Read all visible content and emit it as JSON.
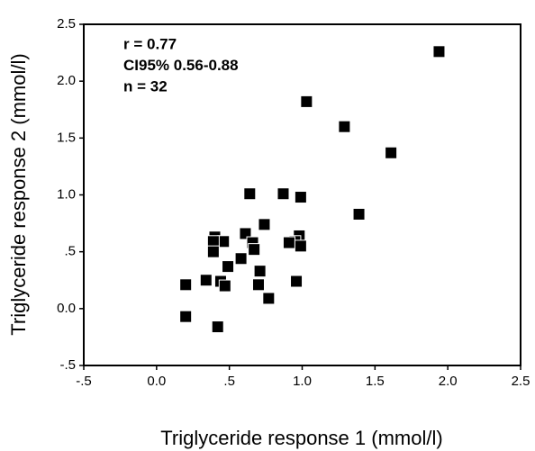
{
  "chart_data": {
    "type": "scatter",
    "xlabel": "Triglyceride response 1 (mmol/l)",
    "ylabel": "Triglyceride response 2 (mmol/l)",
    "annotations": [
      "r = 0.77",
      "CI95% 0.56-0.88",
      "n = 32"
    ],
    "color": "#000000",
    "xlim": [
      -0.5,
      2.5
    ],
    "ylim": [
      -0.5,
      2.5
    ],
    "xticks": [
      {
        "value": -0.5,
        "label": "-.5"
      },
      {
        "value": 0,
        "label": "0.0"
      },
      {
        "value": 0.5,
        "label": ".5"
      },
      {
        "value": 1,
        "label": "1.0"
      },
      {
        "value": 1.5,
        "label": "1.5"
      },
      {
        "value": 2,
        "label": "2.0"
      },
      {
        "value": 2.5,
        "label": "2.5"
      }
    ],
    "yticks": [
      {
        "value": -0.5,
        "label": "-.5"
      },
      {
        "value": 0,
        "label": "0.0"
      },
      {
        "value": 0.5,
        "label": ".5"
      },
      {
        "value": 1,
        "label": "1.0"
      },
      {
        "value": 1.5,
        "label": "1.5"
      },
      {
        "value": 2,
        "label": "2.0"
      },
      {
        "value": 2.5,
        "label": "2.5"
      }
    ],
    "x": [
      1.94,
      1.03,
      1.29,
      1.61,
      1.39,
      0.64,
      0.87,
      0.99,
      0.74,
      0.61,
      0.66,
      0.67,
      0.4,
      0.46,
      0.39,
      0.39,
      0.58,
      0.49,
      0.98,
      0.95,
      0.91,
      0.99,
      0.71,
      0.2,
      0.34,
      0.44,
      0.47,
      0.7,
      0.96,
      0.77,
      0.2,
      0.42
    ],
    "y": [
      2.26,
      1.82,
      1.6,
      1.37,
      0.83,
      1.01,
      1.01,
      0.98,
      0.74,
      0.66,
      0.58,
      0.52,
      0.63,
      0.59,
      0.59,
      0.5,
      0.44,
      0.37,
      0.64,
      0.59,
      0.58,
      0.55,
      0.33,
      0.21,
      0.25,
      0.24,
      0.2,
      0.21,
      0.24,
      0.09,
      -0.07,
      -0.16
    ]
  }
}
